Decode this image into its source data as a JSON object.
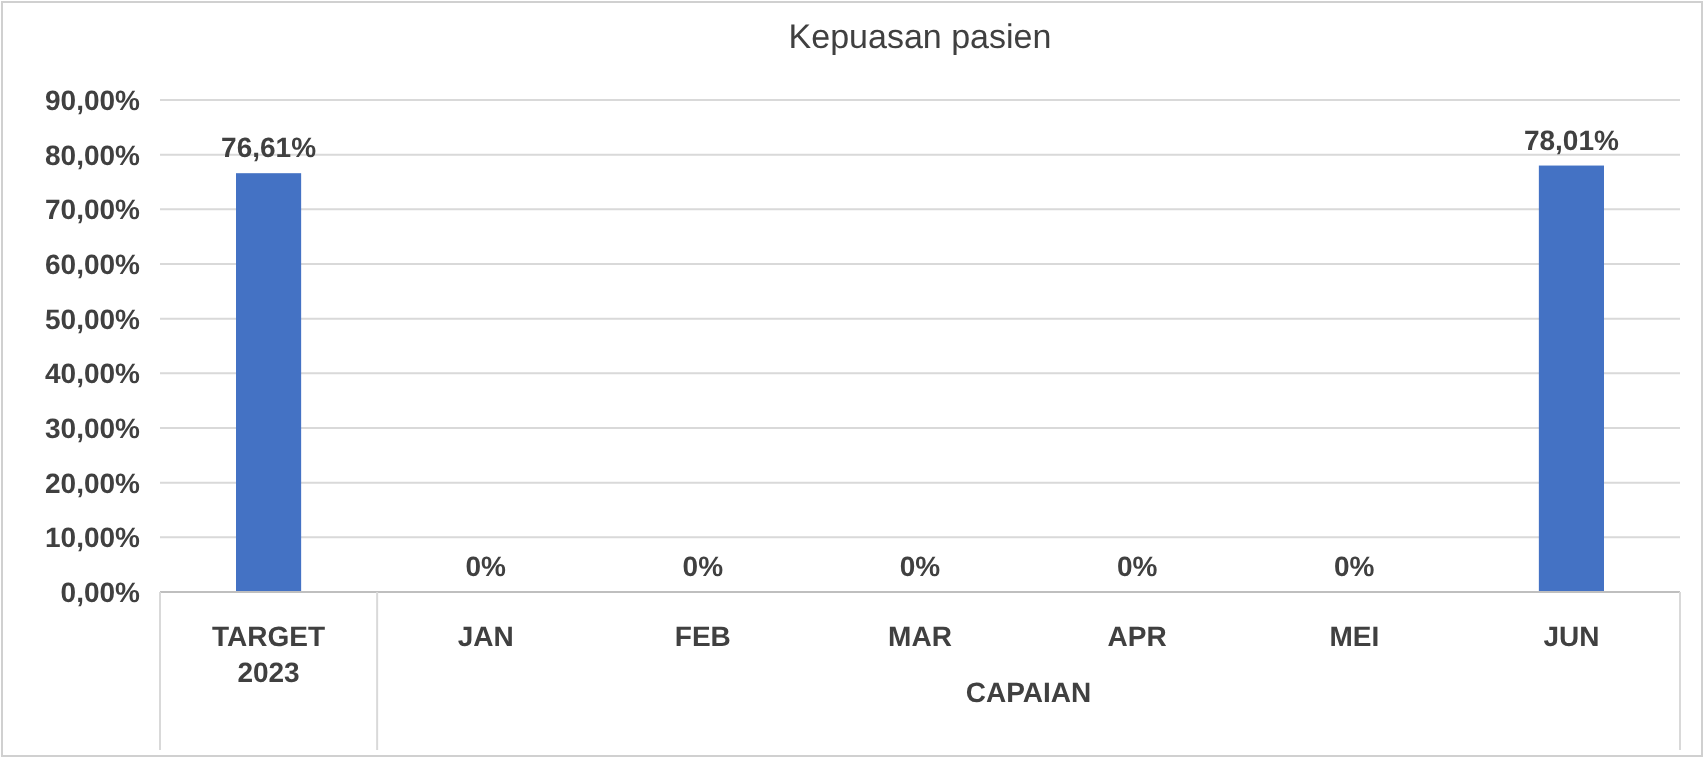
{
  "chart_data": {
    "type": "bar",
    "title": "Kepuasan pasien",
    "categories": [
      "TARGET 2023",
      "JAN",
      "FEB",
      "MAR",
      "APR",
      "MEI",
      "JUN"
    ],
    "values": [
      76.61,
      0,
      0,
      0,
      0,
      0,
      78.01
    ],
    "value_labels": [
      "76,61%",
      "0%",
      "0%",
      "0%",
      "0%",
      "0%",
      "78,01%"
    ],
    "color": "#4472c4",
    "ylim": [
      0,
      90
    ],
    "yticks": [
      {
        "value": 0,
        "label": "0,00%"
      },
      {
        "value": 10,
        "label": "10,00%"
      },
      {
        "value": 20,
        "label": "20,00%"
      },
      {
        "value": 30,
        "label": "30,00%"
      },
      {
        "value": 40,
        "label": "40,00%"
      },
      {
        "value": 50,
        "label": "50,00%"
      },
      {
        "value": 60,
        "label": "60,00%"
      },
      {
        "value": 70,
        "label": "70,00%"
      },
      {
        "value": 80,
        "label": "80,00%"
      },
      {
        "value": 90,
        "label": "90,00%"
      }
    ],
    "grid": "y",
    "annotations": [
      "CAPAIAN"
    ]
  }
}
